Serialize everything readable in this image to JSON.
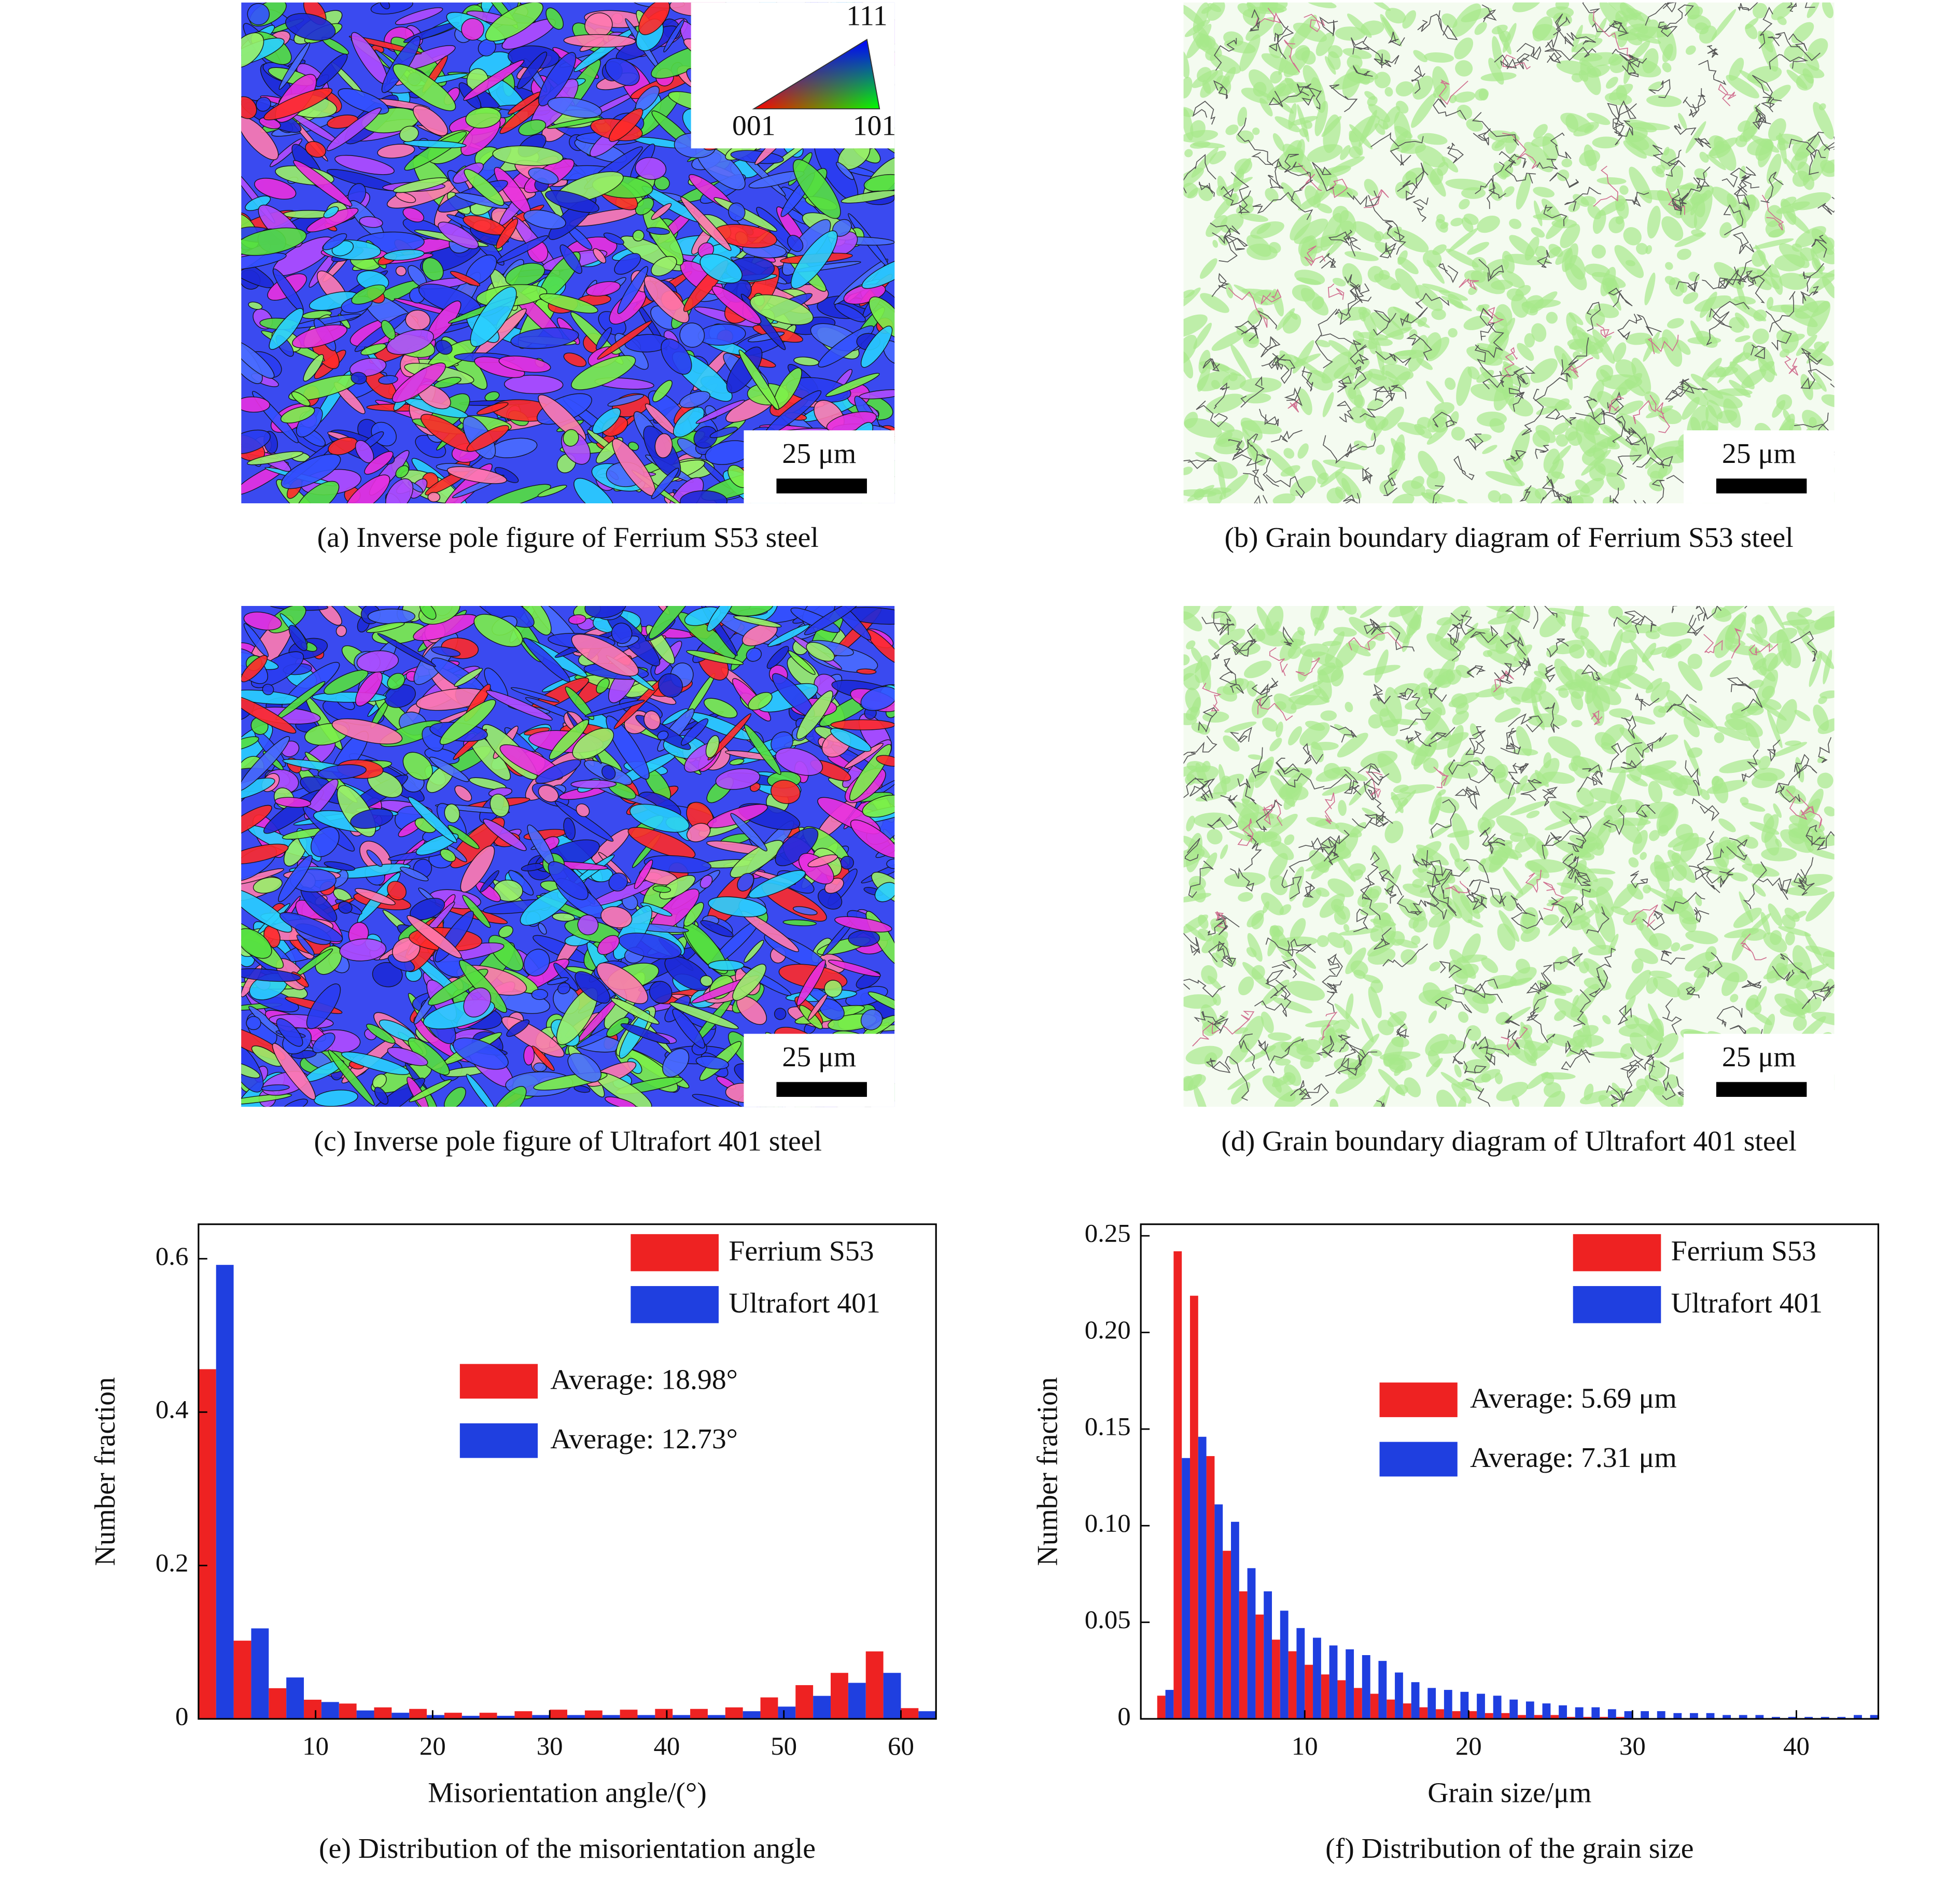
{
  "figures": [
    {
      "caption": "(a) Inverse pole figure of Ferrium S53 steel",
      "scale_bar": "25 μm"
    },
    {
      "caption": "(b) Grain boundary diagram of Ferrium S53 steel",
      "scale_bar": "25 μm"
    },
    {
      "caption": "(c) Inverse pole figure of Ultrafort 401 steel",
      "scale_bar": "25 μm"
    },
    {
      "caption": "(d) Grain boundary diagram of Ultrafort 401 steel",
      "scale_bar": "25 μm"
    }
  ],
  "ipf_key": {
    "top": "111",
    "left": "001",
    "right": "101"
  },
  "chart_data": [
    {
      "type": "histogram",
      "caption": "(e) Distribution of the misorientation angle",
      "x_label": "Misorientation angle/(°)",
      "y_label": "Number fraction",
      "bins": [
        0,
        3,
        6,
        9,
        12,
        15,
        18,
        21,
        24,
        27,
        30,
        33,
        36,
        39,
        42,
        45,
        48,
        51,
        54,
        57,
        60,
        63
      ],
      "series": [
        {
          "name": "Ferrium S53",
          "color": "#ee2222",
          "values": [
            0.456,
            0.102,
            0.04,
            0.025,
            0.02,
            0.015,
            0.013,
            0.008,
            0.008,
            0.01,
            0.012,
            0.011,
            0.012,
            0.013,
            0.013,
            0.015,
            0.028,
            0.044,
            0.06,
            0.088,
            0.014
          ]
        },
        {
          "name": "Ultrafort 401",
          "color": "#1f3fe0",
          "values": [
            0.592,
            0.118,
            0.054,
            0.022,
            0.011,
            0.008,
            0.005,
            0.004,
            0.004,
            0.005,
            0.005,
            0.005,
            0.005,
            0.005,
            0.005,
            0.01,
            0.016,
            0.03,
            0.047,
            0.06,
            0.01
          ]
        }
      ],
      "annotations": [
        {
          "text": "Average: 18.98°",
          "color": "#ee2222"
        },
        {
          "text": "Average: 12.73°",
          "color": "#1f3fe0"
        }
      ],
      "xlim": [
        0,
        63
      ],
      "xticks": [
        10,
        20,
        30,
        40,
        50,
        60
      ],
      "ylim": [
        0,
        0.645
      ],
      "yticks": [
        0,
        0.2,
        0.4,
        0.6
      ],
      "legend": "upper right"
    },
    {
      "type": "histogram",
      "caption": "(f) Distribution of the grain size",
      "x_label": "Grain size/μm",
      "y_label": "Number fraction",
      "bins": [
        1,
        2,
        3,
        4,
        5,
        6,
        7,
        8,
        9,
        10,
        11,
        12,
        13,
        14,
        15,
        16,
        17,
        18,
        19,
        20,
        21,
        22,
        23,
        24,
        25,
        26,
        27,
        28,
        29,
        30,
        31,
        32,
        33,
        34,
        35,
        36,
        37,
        38,
        39,
        40,
        41,
        42,
        43,
        44,
        45
      ],
      "series": [
        {
          "name": "Ferrium S53",
          "color": "#ee2222",
          "values": [
            0.012,
            0.242,
            0.219,
            0.136,
            0.087,
            0.066,
            0.054,
            0.041,
            0.035,
            0.028,
            0.023,
            0.02,
            0.016,
            0.013,
            0.01,
            0.008,
            0.006,
            0.005,
            0.004,
            0.004,
            0.003,
            0.003,
            0.002,
            0.002,
            0.002,
            0.001,
            0.001,
            0.001,
            0.001,
            0,
            0,
            0,
            0,
            0,
            0,
            0,
            0,
            0,
            0,
            0,
            0,
            0,
            0,
            0
          ]
        },
        {
          "name": "Ultrafort 401",
          "color": "#1f3fe0",
          "values": [
            0.015,
            0.135,
            0.146,
            0.111,
            0.102,
            0.078,
            0.066,
            0.056,
            0.047,
            0.042,
            0.038,
            0.036,
            0.033,
            0.03,
            0.024,
            0.019,
            0.016,
            0.015,
            0.014,
            0.013,
            0.012,
            0.01,
            0.009,
            0.008,
            0.007,
            0.006,
            0.006,
            0.005,
            0.004,
            0.004,
            0.004,
            0.003,
            0.003,
            0.003,
            0.002,
            0.002,
            0.002,
            0.001,
            0.001,
            0.001,
            0.001,
            0.001,
            0.002,
            0.002
          ]
        }
      ],
      "annotations": [
        {
          "text": "Average: 5.69 μm",
          "color": "#ee2222"
        },
        {
          "text": "Average: 7.31 μm",
          "color": "#1f3fe0"
        }
      ],
      "xlim": [
        0,
        45
      ],
      "xticks": [
        10,
        20,
        30,
        40
      ],
      "ylim": [
        0,
        0.256
      ],
      "yticks": [
        0,
        0.05,
        {
          "value": 0.1,
          "label": "0.10"
        },
        0.15,
        {
          "value": 0.2,
          "label": "0.20"
        },
        0.25
      ],
      "legend": "upper right"
    }
  ]
}
